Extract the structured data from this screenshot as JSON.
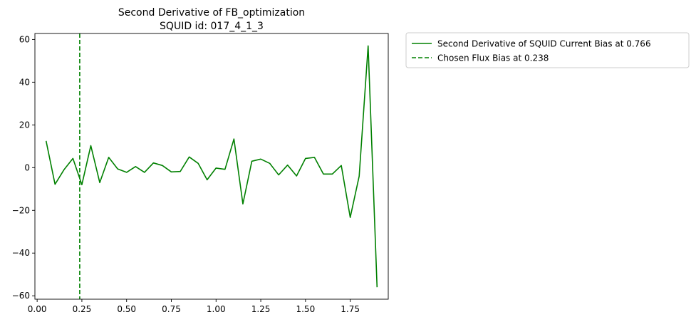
{
  "chart_data": {
    "type": "line",
    "title": "Second Derivative of FB_optimization",
    "subtitle": "SQUID id: 017_4_1_3",
    "xlabel": "",
    "ylabel": "",
    "xlim": [
      -0.0125,
      1.9625
    ],
    "ylim": [
      -61.6,
      62.8
    ],
    "xticks": [
      "0.00",
      "0.25",
      "0.50",
      "0.75",
      "1.00",
      "1.25",
      "1.50",
      "1.75"
    ],
    "yticks": [
      "60",
      "40",
      "20",
      "0",
      "−20",
      "−40",
      "−60"
    ],
    "xtick_values": [
      0.0,
      0.25,
      0.5,
      0.75,
      1.0,
      1.25,
      1.5,
      1.75
    ],
    "ytick_values": [
      60,
      40,
      20,
      0,
      -20,
      -40,
      -60
    ],
    "grid": false,
    "legend_position": "outside-top-right",
    "series": [
      {
        "name": "Second Derivative of SQUID Current Bias at 0.766",
        "color": "#008000",
        "style": "solid",
        "x": [
          0.05,
          0.1,
          0.15,
          0.2,
          0.25,
          0.3,
          0.35,
          0.4,
          0.45,
          0.5,
          0.55,
          0.6,
          0.65,
          0.7,
          0.75,
          0.8,
          0.85,
          0.9,
          0.95,
          1.0,
          1.05,
          1.1,
          1.15,
          1.2,
          1.25,
          1.3,
          1.35,
          1.4,
          1.45,
          1.5,
          1.55,
          1.6,
          1.65,
          1.7,
          1.75,
          1.8,
          1.85,
          1.9
        ],
        "y": [
          12.5,
          -7.8,
          -1.0,
          4.3,
          -8.0,
          10.3,
          -7.0,
          4.8,
          -0.6,
          -2.2,
          0.5,
          -2.2,
          2.2,
          1.0,
          -2.0,
          -1.8,
          5.0,
          2.0,
          -5.7,
          -0.2,
          -0.8,
          13.4,
          -17.0,
          3.0,
          4.0,
          2.0,
          -3.4,
          1.2,
          -3.9,
          4.3,
          4.8,
          -3.0,
          -3.0,
          1.0,
          -23.3,
          -4.0,
          57.0,
          -56.0
        ]
      },
      {
        "name": "Chosen Flux Bias at 0.238",
        "color": "#008000",
        "style": "dashed",
        "vline_x": 0.238
      }
    ]
  }
}
